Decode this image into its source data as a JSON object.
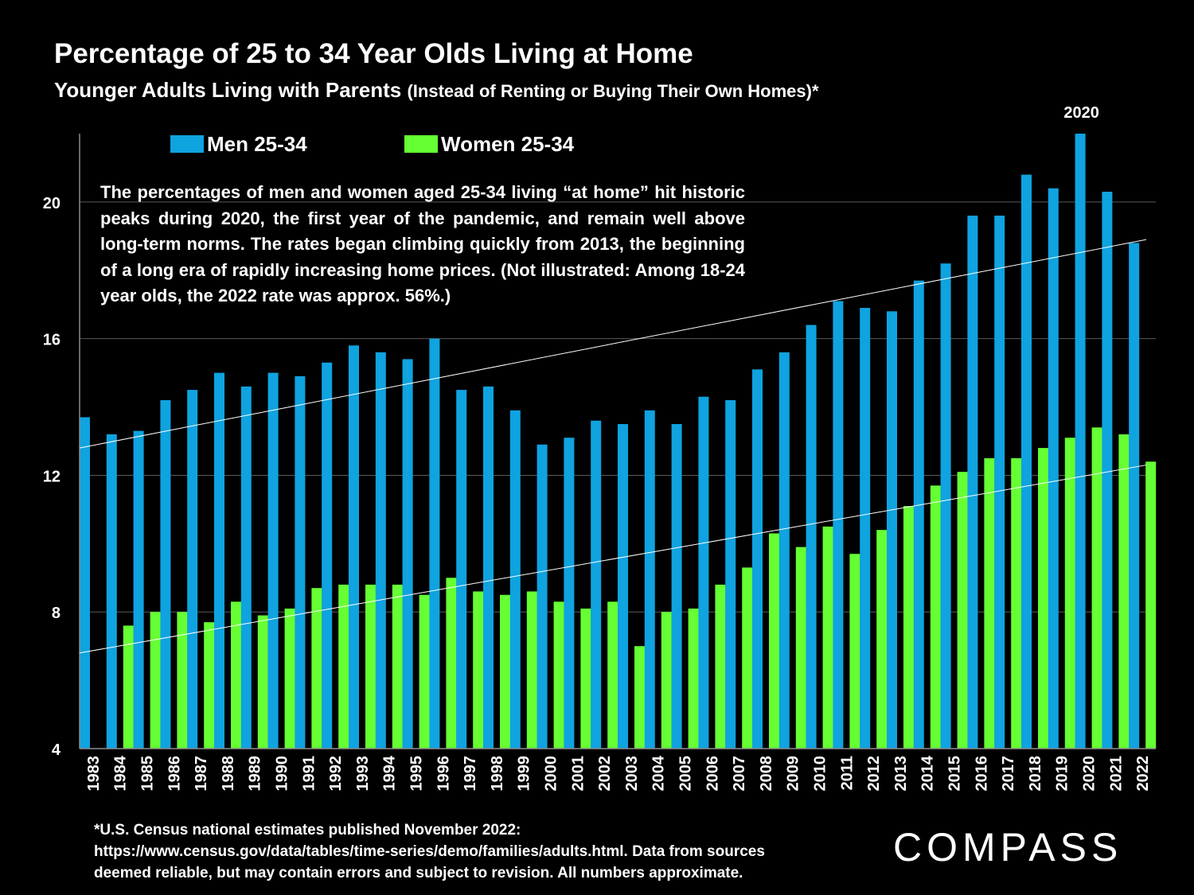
{
  "title": "Percentage of 25 to 34 Year Olds Living at Home",
  "subtitle_main": "Younger Adults Living with Parents",
  "subtitle_paren": "(Instead of Renting or Buying Their Own Homes)*",
  "annotation": "The percentages of men and women aged 25-34 living “at home” hit historic peaks during 2020, the first year of the pandemic, and remain well above long-term norms. The rates began climbing quickly from 2013, the beginning of a long era of rapidly increasing home prices. (Not illustrated:  Among 18-24 year olds, the 2022 rate was approx. 56%.)",
  "footnote": {
    "line1": "*U.S. Census national estimates published November 2022:",
    "line2": "https://www.census.gov/data/tables/time-series/demo/families/adults.html.  Data from sources",
    "line3": "deemed reliable, but may contain errors and subject to revision. All numbers approximate."
  },
  "logo_text": "COMPASS",
  "chart_data": {
    "type": "bar",
    "categories": [
      "1983",
      "1984",
      "1985",
      "1986",
      "1987",
      "1988",
      "1989",
      "1990",
      "1991",
      "1992",
      "1993",
      "1994",
      "1995",
      "1996",
      "1997",
      "1998",
      "1999",
      "2000",
      "2001",
      "2002",
      "2003",
      "2004",
      "2005",
      "2006",
      "2007",
      "2008",
      "2009",
      "2010",
      "2011",
      "2012",
      "2013",
      "2014",
      "2015",
      "2016",
      "2017",
      "2018",
      "2019",
      "2020",
      "2021",
      "2022"
    ],
    "series": [
      {
        "name": "Men 25-34",
        "color": "#0fa3e0",
        "values": [
          13.7,
          13.2,
          13.3,
          14.2,
          14.5,
          15.0,
          14.6,
          15.0,
          14.9,
          15.3,
          15.8,
          15.6,
          15.4,
          16.0,
          14.5,
          14.6,
          13.9,
          12.9,
          13.1,
          13.6,
          13.5,
          13.9,
          13.5,
          14.3,
          14.2,
          15.1,
          15.6,
          16.4,
          17.1,
          16.9,
          16.8,
          17.7,
          18.2,
          19.6,
          19.6,
          20.8,
          20.4,
          22.0,
          20.3,
          18.8
        ]
      },
      {
        "name": "Women 25-34",
        "color": "#66ff33",
        "values": [
          null,
          7.6,
          8.0,
          8.0,
          7.7,
          8.3,
          7.9,
          8.1,
          8.7,
          8.8,
          8.8,
          8.8,
          8.5,
          9.0,
          8.6,
          8.5,
          8.6,
          8.3,
          8.1,
          8.3,
          7.0,
          8.0,
          8.1,
          8.8,
          9.3,
          10.3,
          9.9,
          10.5,
          9.7,
          10.4,
          11.1,
          11.7,
          12.1,
          12.5,
          12.5,
          12.8,
          13.1,
          13.4,
          13.2,
          12.4
        ]
      }
    ],
    "trendlines": [
      {
        "series": "Men 25-34",
        "start": 12.8,
        "end": 18.9
      },
      {
        "series": "Women 25-34",
        "start": 6.8,
        "end": 12.3
      }
    ],
    "peak_label": {
      "category": "2020",
      "text": "2020"
    },
    "ylim": [
      4,
      22
    ],
    "yticks": [
      4,
      8,
      12,
      16,
      20
    ],
    "grid": true,
    "legend_position": "top-left"
  }
}
